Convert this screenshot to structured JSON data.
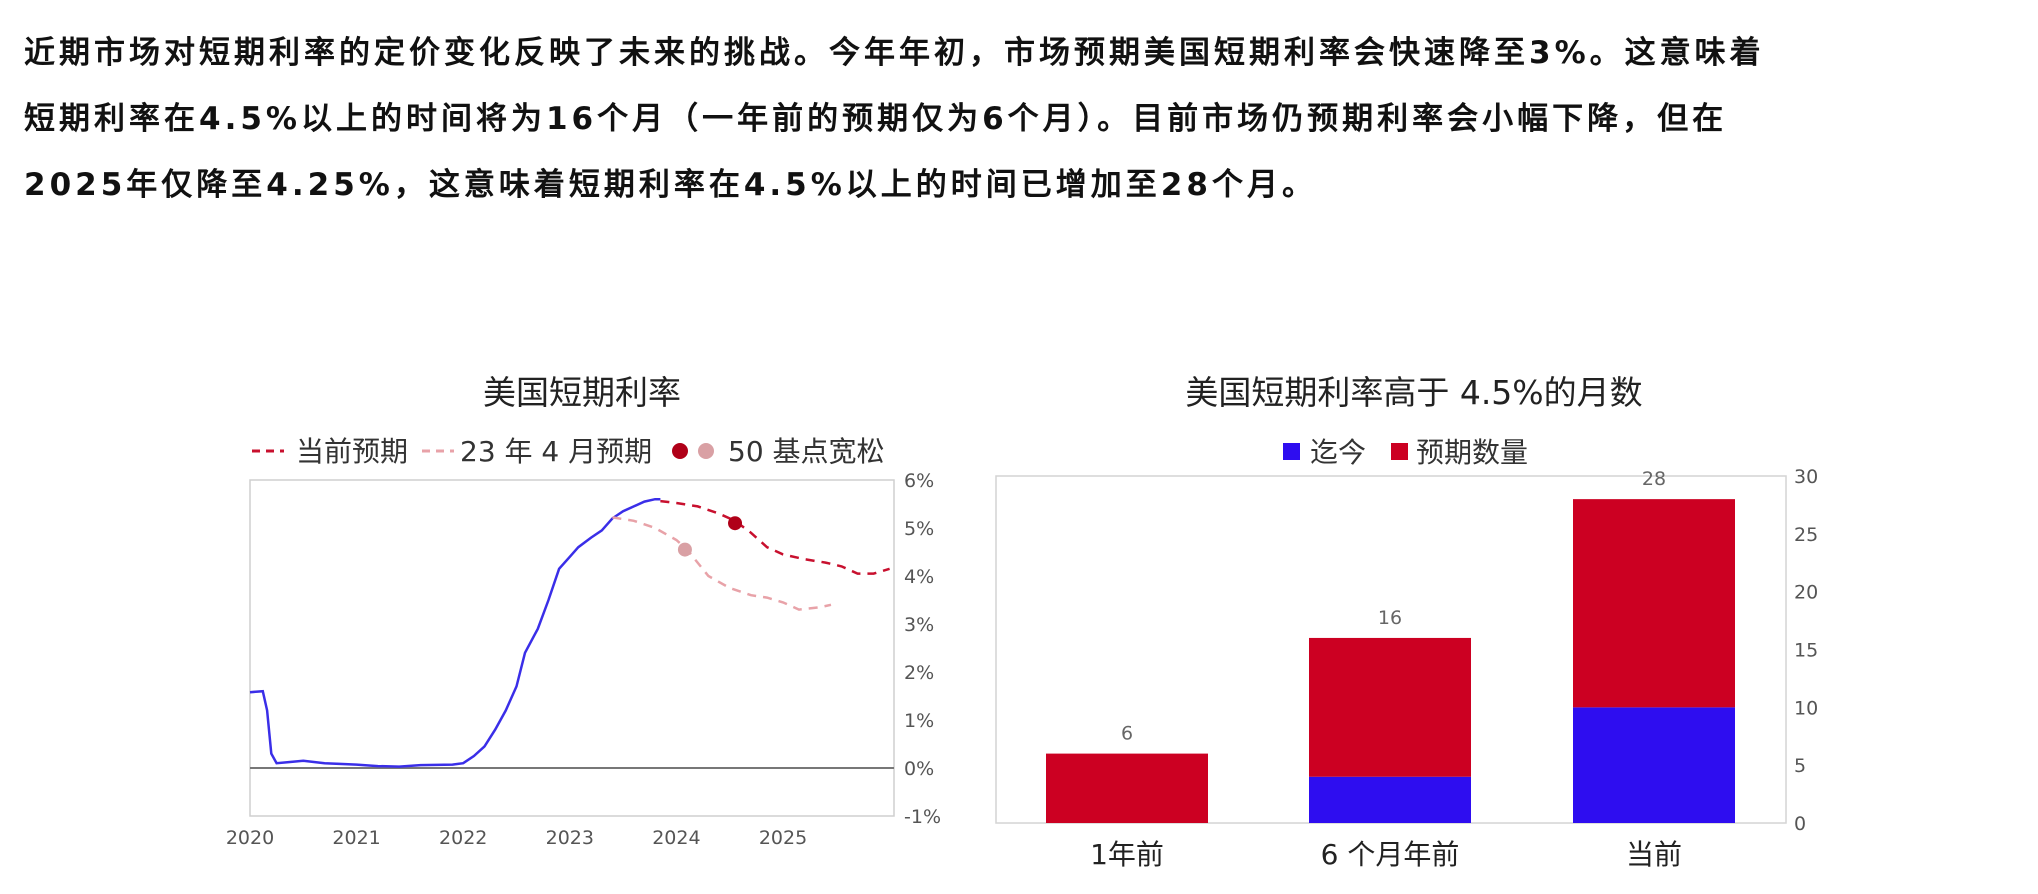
{
  "paragraph": {
    "line1": "近期市场对短期利率的定价变化反映了未来的挑战。今年年初，市场预期美国短期利率会快速降至3%。这意味着",
    "line2": "短期利率在4.5%以上的时间将为16个月（一年前的预期仅为6个月）。目前市场仍预期利率会小幅下降，但在",
    "line3": "2025年仅降至4.25%，这意味着短期利率在4.5%以上的时间已增加至28个月。"
  },
  "colors": {
    "history_line": "#3a2ee8",
    "current_forecast": "#c8102e",
    "april_forecast": "#e8a2a8",
    "bar_blue": "#2e0df0",
    "bar_red": "#cc0022"
  },
  "chart_data": [
    {
      "type": "line",
      "title": "美国短期利率",
      "legend": [
        "当前预期",
        "23 年 4 月预期",
        "50 基点宽松"
      ],
      "x_ticks": [
        "2020",
        "2021",
        "2022",
        "2023",
        "2024",
        "2025"
      ],
      "y_ticks": [
        "6%",
        "5%",
        "4%",
        "3%",
        "2%",
        "1%",
        "0%",
        "-1%"
      ],
      "xlim": [
        2020,
        2026.0
      ],
      "ylim": [
        -1,
        6
      ],
      "y_axis_side": "right",
      "series": [
        {
          "name": "",
          "style": "solid",
          "points": [
            [
              2020.0,
              1.58
            ],
            [
              2020.12,
              1.6
            ],
            [
              2020.16,
              1.2
            ],
            [
              2020.2,
              0.3
            ],
            [
              2020.25,
              0.1
            ],
            [
              2020.35,
              0.12
            ],
            [
              2020.5,
              0.15
            ],
            [
              2020.7,
              0.1
            ],
            [
              2021.0,
              0.07
            ],
            [
              2021.2,
              0.04
            ],
            [
              2021.4,
              0.03
            ],
            [
              2021.6,
              0.06
            ],
            [
              2021.9,
              0.07
            ],
            [
              2022.0,
              0.1
            ],
            [
              2022.1,
              0.25
            ],
            [
              2022.2,
              0.45
            ],
            [
              2022.3,
              0.8
            ],
            [
              2022.4,
              1.2
            ],
            [
              2022.5,
              1.7
            ],
            [
              2022.58,
              2.4
            ],
            [
              2022.7,
              2.9
            ],
            [
              2022.8,
              3.5
            ],
            [
              2022.9,
              4.15
            ],
            [
              2023.0,
              4.4
            ],
            [
              2023.08,
              4.6
            ],
            [
              2023.2,
              4.8
            ],
            [
              2023.3,
              4.95
            ],
            [
              2023.4,
              5.2
            ],
            [
              2023.5,
              5.35
            ],
            [
              2023.6,
              5.45
            ],
            [
              2023.7,
              5.55
            ],
            [
              2023.8,
              5.6
            ],
            [
              2023.85,
              5.6
            ]
          ]
        },
        {
          "name": "当前预期",
          "style": "dashed",
          "points": [
            [
              2023.85,
              5.56
            ],
            [
              2024.0,
              5.52
            ],
            [
              2024.2,
              5.45
            ],
            [
              2024.4,
              5.3
            ],
            [
              2024.55,
              5.15
            ],
            [
              2024.7,
              4.9
            ],
            [
              2024.85,
              4.6
            ],
            [
              2025.0,
              4.45
            ],
            [
              2025.2,
              4.35
            ],
            [
              2025.4,
              4.28
            ],
            [
              2025.55,
              4.2
            ],
            [
              2025.7,
              4.05
            ],
            [
              2025.85,
              4.05
            ],
            [
              2026.0,
              4.15
            ]
          ]
        },
        {
          "name": "23 年 4 月预期",
          "style": "dashed",
          "points": [
            [
              2023.4,
              5.22
            ],
            [
              2023.6,
              5.15
            ],
            [
              2023.8,
              5.0
            ],
            [
              2024.0,
              4.75
            ],
            [
              2024.1,
              4.55
            ],
            [
              2024.3,
              4.0
            ],
            [
              2024.5,
              3.75
            ],
            [
              2024.7,
              3.6
            ],
            [
              2024.85,
              3.55
            ],
            [
              2025.0,
              3.45
            ],
            [
              2025.15,
              3.3
            ],
            [
              2025.35,
              3.35
            ],
            [
              2025.45,
              3.4
            ]
          ]
        }
      ],
      "markers": [
        {
          "x": 2024.55,
          "y": 5.1,
          "series": "当前预期"
        },
        {
          "x": 2024.08,
          "y": 4.55,
          "series": "23 年 4 月预期"
        }
      ]
    },
    {
      "type": "bar",
      "stacked": true,
      "title": "美国短期利率高于 4.5%的月数",
      "legend": [
        "迄今",
        "预期数量"
      ],
      "categories": [
        "1年前",
        "6 个月年前",
        "当前"
      ],
      "series": [
        {
          "name": "迄今",
          "values": [
            0,
            4,
            10
          ]
        },
        {
          "name": "预期数量",
          "values": [
            6,
            12,
            18
          ]
        }
      ],
      "totals": [
        "6",
        "16",
        "28"
      ],
      "y_ticks": [
        "30",
        "25",
        "20",
        "15",
        "10",
        "5",
        "0"
      ],
      "ylim": [
        0,
        30
      ],
      "y_axis_side": "right"
    }
  ]
}
